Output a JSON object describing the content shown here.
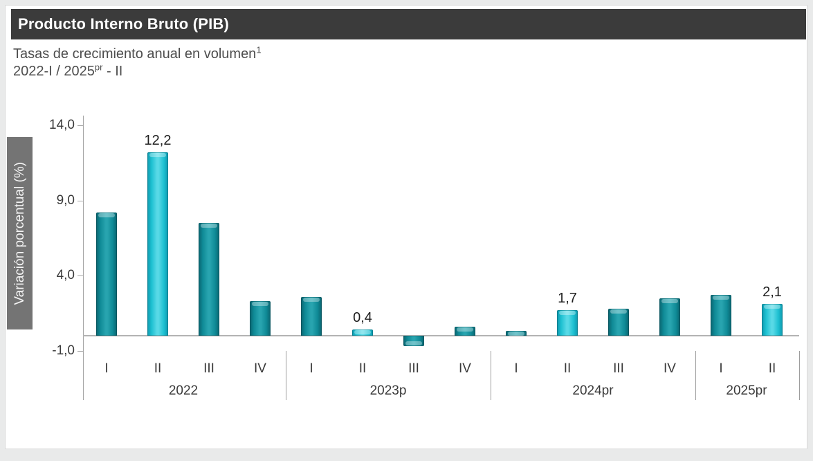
{
  "header": {
    "title": "Producto Interno Bruto (PIB)"
  },
  "subtitle": {
    "line1_text": "Tasas de crecimiento anual en volumen",
    "line1_sup": "1",
    "line2_pre": "2022-I / 2025",
    "line2_sup": "pr",
    "line2_post": " - II"
  },
  "chart_data": {
    "type": "bar",
    "title": "Producto Interno Bruto (PIB)",
    "subtitle": "Tasas de crecimiento anual en volumen, 2022-I / 2025pr - II",
    "xlabel": "",
    "ylabel": "Variación porcentual (%)",
    "ylim": [
      -1.0,
      14.0
    ],
    "grid": false,
    "legend": "none",
    "y_ticks": [
      {
        "value": 14.0,
        "label": "14,0"
      },
      {
        "value": 9.0,
        "label": "9,0"
      },
      {
        "value": 4.0,
        "label": "4,0"
      },
      {
        "value": -1.0,
        "label": "-1,0"
      }
    ],
    "groups": [
      {
        "label": "2022",
        "quarters": [
          "I",
          "II",
          "III",
          "IV"
        ],
        "values": [
          8.2,
          12.2,
          7.5,
          2.3
        ],
        "data_labels": [
          "",
          "12,2",
          "",
          ""
        ],
        "highlighted": [
          false,
          true,
          false,
          false
        ]
      },
      {
        "label": "2023p",
        "quarters": [
          "I",
          "II",
          "III",
          "IV"
        ],
        "values": [
          2.6,
          0.4,
          -0.7,
          0.6
        ],
        "data_labels": [
          "",
          "0,4",
          "",
          ""
        ],
        "highlighted": [
          false,
          true,
          false,
          false
        ]
      },
      {
        "label": "2024pr",
        "quarters": [
          "I",
          "II",
          "III",
          "IV"
        ],
        "values": [
          0.3,
          1.7,
          1.8,
          2.5
        ],
        "data_labels": [
          "",
          "1,7",
          "",
          ""
        ],
        "highlighted": [
          false,
          true,
          false,
          false
        ]
      },
      {
        "label": "2025pr",
        "quarters": [
          "I",
          "II"
        ],
        "values": [
          2.7,
          2.1
        ],
        "data_labels": [
          "",
          "2,1"
        ],
        "highlighted": [
          false,
          true
        ]
      }
    ]
  },
  "colors": {
    "page_background": "#e9eaea",
    "card_background": "#ffffff",
    "title_bar_background": "#3b3b3b",
    "title_text": "#ffffff",
    "subtitle_text": "#4d4d4d",
    "ylabel_box_background": "#747474",
    "axis_line": "#a6a6a6",
    "tick_text": "#3a3a3a",
    "bar_normal": {
      "edge": "#0a636e",
      "base": "#0f8a96",
      "light": "#28a4af"
    },
    "bar_highlight": {
      "edge": "#0d97ac",
      "base": "#1dc0d1",
      "light": "#58d9e6"
    }
  }
}
